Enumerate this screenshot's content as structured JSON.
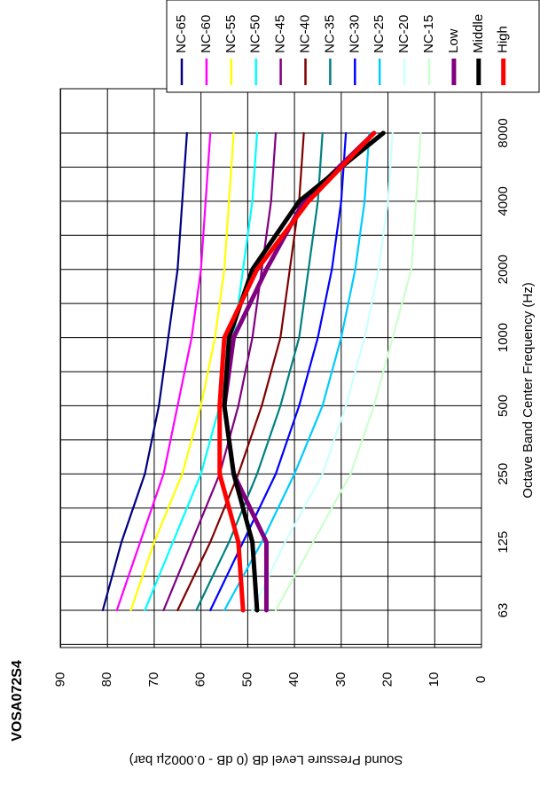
{
  "chart_data": {
    "type": "line",
    "title": "VOSA072S4",
    "x_label": "Octave Band Center Frequency (Hz)",
    "y_label": "Sound Pressure Level dB (0 dB - 0.0002µ bar)",
    "categories": [
      "63",
      "125",
      "250",
      "500",
      "1000",
      "2000",
      "4000",
      "8000"
    ],
    "ylim": [
      0,
      90
    ],
    "yticks": [
      0,
      10,
      20,
      30,
      40,
      50,
      60,
      70,
      80,
      90
    ],
    "grid": true,
    "legend": "top-right",
    "series": [
      {
        "name": "NC-65",
        "color": "#000080",
        "values": [
          81,
          77,
          72,
          69,
          67,
          65,
          64,
          63
        ]
      },
      {
        "name": "NC-60",
        "color": "#ff00ff",
        "values": [
          78,
          73,
          68,
          65,
          62,
          60,
          59,
          58
        ]
      },
      {
        "name": "NC-55",
        "color": "#ffff00",
        "values": [
          75,
          70,
          64,
          60,
          57,
          55,
          54,
          53
        ]
      },
      {
        "name": "NC-50",
        "color": "#00ffff",
        "values": [
          72,
          66,
          60,
          56,
          53,
          51,
          49,
          48
        ]
      },
      {
        "name": "NC-45",
        "color": "#800080",
        "values": [
          68,
          62,
          56,
          52,
          49,
          47,
          45,
          44
        ]
      },
      {
        "name": "NC-40",
        "color": "#800000",
        "values": [
          65,
          58,
          52,
          47,
          43,
          41,
          39,
          38
        ]
      },
      {
        "name": "NC-35",
        "color": "#008080",
        "values": [
          61,
          54,
          48,
          43,
          39,
          37,
          35,
          34
        ]
      },
      {
        "name": "NC-30",
        "color": "#0000ff",
        "values": [
          58,
          51,
          44,
          39,
          35,
          32,
          30,
          29
        ]
      },
      {
        "name": "NC-25",
        "color": "#00ccff",
        "values": [
          55,
          47,
          40,
          34,
          30,
          27,
          25,
          24
        ]
      },
      {
        "name": "NC-20",
        "color": "#ccffff",
        "values": [
          49,
          42,
          34,
          29,
          25,
          22,
          20,
          19
        ]
      },
      {
        "name": "NC-15",
        "color": "#ccffcc",
        "values": [
          44,
          36,
          28,
          23,
          19,
          15,
          14,
          13
        ]
      },
      {
        "name": "Low",
        "color": "#800080",
        "values": [
          46,
          46,
          53,
          55,
          53,
          46,
          38,
          23
        ]
      },
      {
        "name": "Middle",
        "color": "#000000",
        "values": [
          48,
          49,
          53,
          55,
          54,
          49,
          39,
          21
        ]
      },
      {
        "name": "High",
        "color": "#ff0000",
        "values": [
          51,
          52,
          56,
          56,
          55,
          48,
          37,
          23
        ]
      }
    ]
  }
}
